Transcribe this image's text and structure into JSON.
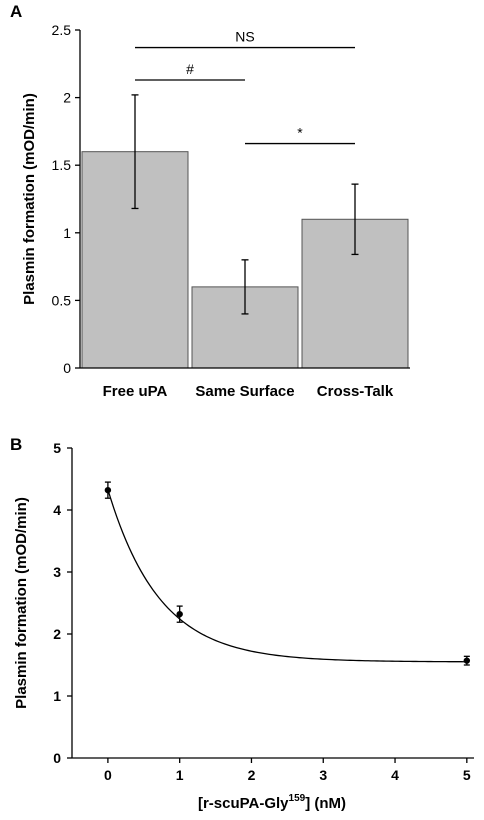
{
  "chart_data": [
    {
      "panel": "A",
      "type": "bar",
      "ylabel": "Plasmin formation (mOD/min)",
      "ylim": [
        0,
        2.5
      ],
      "yticks": [
        "0",
        "0.5",
        "1",
        "1.5",
        "2",
        "2.5"
      ],
      "ytick_values": [
        0,
        0.5,
        1,
        1.5,
        2,
        2.5
      ],
      "categories": [
        "Free uPA",
        "Same Surface",
        "Cross-Talk"
      ],
      "values": [
        1.6,
        0.6,
        1.1
      ],
      "errors": [
        0.42,
        0.2,
        0.26
      ],
      "bar_color": "#c0c0c0",
      "significance": [
        {
          "label": "NS",
          "from": 0,
          "to": 2,
          "y": 2.37
        },
        {
          "label": "#",
          "from": 0,
          "to": 1,
          "y": 2.13
        },
        {
          "label": "*",
          "from": 1,
          "to": 2,
          "y": 1.66
        }
      ]
    },
    {
      "panel": "B",
      "type": "scatter",
      "xlabel_main": "[r-scuPA-Gly",
      "xlabel_sup": "159",
      "xlabel_end": "] (nM)",
      "ylabel": "Plasmin formation (mOD/min)",
      "xlim": [
        -0.5,
        5.1
      ],
      "ylim": [
        0,
        5
      ],
      "xticks": [
        "0",
        "1",
        "2",
        "3",
        "4",
        "5"
      ],
      "xtick_values": [
        0,
        1,
        2,
        3,
        4,
        5
      ],
      "yticks": [
        "0",
        "1",
        "2",
        "3",
        "4",
        "5"
      ],
      "ytick_values": [
        0,
        1,
        2,
        3,
        4,
        5
      ],
      "x": [
        0,
        1,
        5
      ],
      "y": [
        4.32,
        2.32,
        1.57
      ],
      "errors": [
        0.13,
        0.13,
        0.07
      ],
      "fit": {
        "a": 2.78,
        "k": 1.39,
        "c": 1.55
      }
    }
  ]
}
